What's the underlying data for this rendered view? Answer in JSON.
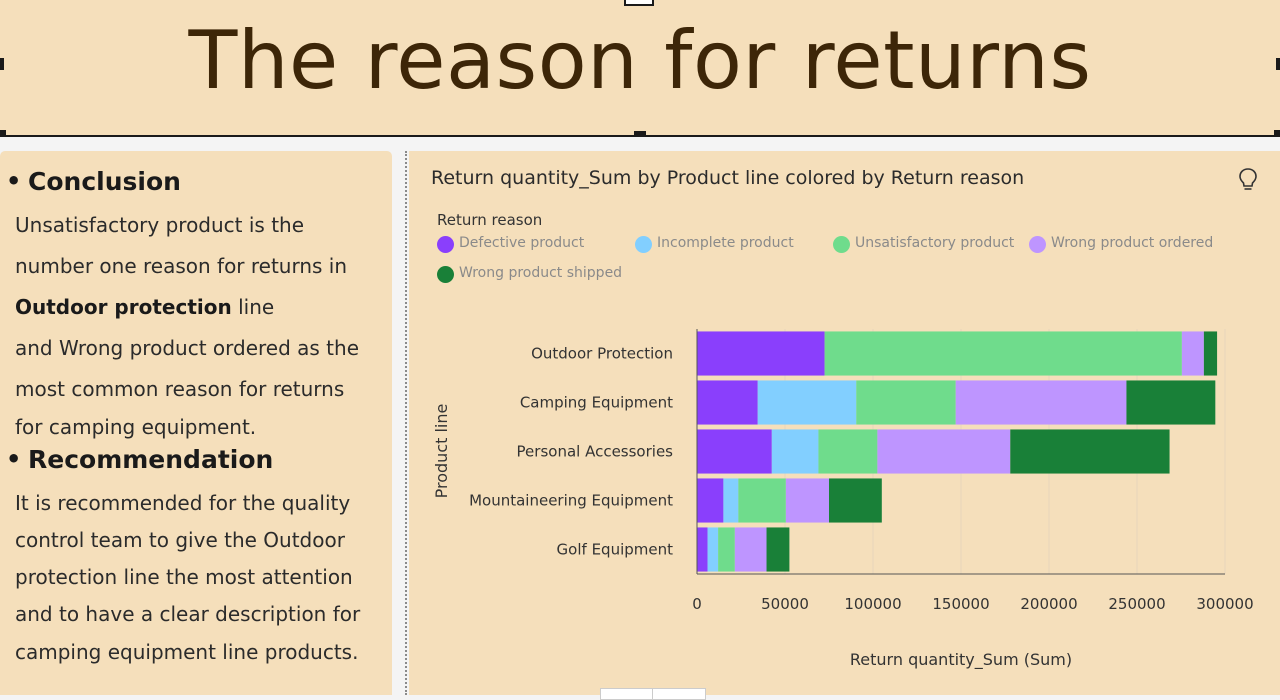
{
  "page": {
    "title": "The reason for returns"
  },
  "panel": {
    "conclusion_heading": "Conclusion",
    "conclusion_lines": [
      "Unsatisfactory product is the",
      "number one reason for returns in",
      "Outdoor protection",
      " line",
      "and Wrong product ordered as the",
      "most common reason for returns",
      "for camping equipment."
    ],
    "recommendation_heading": "Recommendation",
    "recommendation_lines": [
      "It is recommended for the quality",
      "control team to give the Outdoor",
      "protection line the most attention",
      "and to have a clear description for",
      "camping equipment line products."
    ]
  },
  "icons": {
    "insight": "lightbulb-icon"
  },
  "chart_data": {
    "type": "bar",
    "orientation": "horizontal",
    "stacked": true,
    "title": "Return quantity_Sum by Product line colored by Return reason",
    "xlabel": "Return quantity_Sum (Sum)",
    "ylabel": "Product line",
    "legend_title": "Return reason",
    "legend_position": "top-left",
    "xlim": [
      0,
      300000
    ],
    "xticks": [
      "0",
      "50000",
      "100000",
      "150000",
      "200000",
      "250000",
      "300000"
    ],
    "grid": true,
    "categories": [
      "Outdoor Protection",
      "Camping Equipment",
      "Personal Accessories",
      "Mountaineering Equipment",
      "Golf Equipment"
    ],
    "series": [
      {
        "name": "Defective product",
        "color": "#8a3ffc",
        "values": [
          72500,
          34500,
          42500,
          15000,
          6000
        ]
      },
      {
        "name": "Incomplete product",
        "color": "#82cfff",
        "values": [
          0,
          56000,
          26500,
          8500,
          6000
        ]
      },
      {
        "name": "Unsatisfactory product",
        "color": "#6fdc8c",
        "values": [
          203000,
          56500,
          33500,
          27000,
          9500
        ]
      },
      {
        "name": "Wrong product ordered",
        "color": "#be95ff",
        "values": [
          12500,
          97000,
          75500,
          24500,
          18000
        ]
      },
      {
        "name": "Wrong product shipped",
        "color": "#198038",
        "values": [
          7500,
          50500,
          90500,
          30000,
          13000
        ]
      }
    ]
  }
}
